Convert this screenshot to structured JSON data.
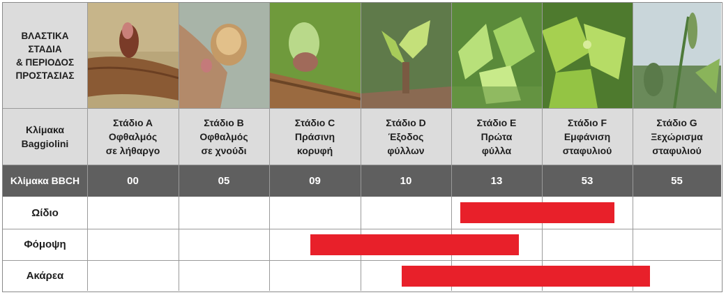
{
  "corner_label": "ΒΛΑΣΤΙΚΑ\nΣΤΑΔΙΑ\n& ΠΕΡΙΟΔΟΣ\nΠΡΟΣΤΑΣΙΑΣ",
  "baggiolini_label": "Κλίμακα\nBaggiolini",
  "bbch_label": "Κλίμακα BBCH",
  "stages": [
    {
      "name": "Στάδιο Α\nΟφθαλμός\nσε λήθαργο",
      "bbch": "00",
      "photo_icon": "dormant-bud-photo"
    },
    {
      "name": "Στάδιο Β\nΟφθαλμός\nσε χνούδι",
      "bbch": "05",
      "photo_icon": "woolly-bud-photo"
    },
    {
      "name": "Στάδιο C\nΠράσινη\nκορυφή",
      "bbch": "09",
      "photo_icon": "green-tip-photo"
    },
    {
      "name": "Στάδιο D\nΈξοδος\nφύλλων",
      "bbch": "10",
      "photo_icon": "leaf-emergence-photo"
    },
    {
      "name": "Στάδιο Ε\nΠρώτα\nφύλλα",
      "bbch": "13",
      "photo_icon": "first-leaves-photo"
    },
    {
      "name": "Στάδιο F\nΕμφάνιση\nσταφυλιού",
      "bbch": "53",
      "photo_icon": "inflorescence-visible-photo"
    },
    {
      "name": "Στάδιο G\nΞεχώρισμα\nσταφυλιού",
      "bbch": "55",
      "photo_icon": "inflorescence-separated-photo"
    }
  ],
  "bar_color": "#e8202a",
  "protection_periods": [
    {
      "disease": "Ωίδιο",
      "start_stage": 4.1,
      "end_stage": 5.8
    },
    {
      "disease": "Φόμοψη",
      "start_stage": 2.45,
      "end_stage": 4.75
    },
    {
      "disease": "Ακάρεα",
      "start_stage": 3.45,
      "end_stage": 6.2
    }
  ]
}
